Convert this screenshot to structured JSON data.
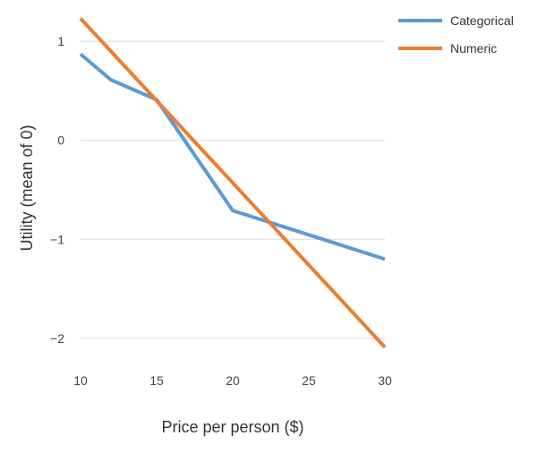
{
  "chart_data": {
    "type": "line",
    "title": "",
    "xlabel": "Price per person ($)",
    "ylabel": "Utility (mean of 0)",
    "xlim": [
      10,
      30
    ],
    "ylim": [
      -2.2,
      1.3
    ],
    "xticks": [
      10,
      15,
      20,
      25,
      30
    ],
    "yticks": [
      1,
      0,
      -1,
      -2
    ],
    "ytick_labels": [
      "1",
      "0",
      "−1",
      "−2"
    ],
    "grid": "horizontal",
    "legend_position": "top-right",
    "series": [
      {
        "name": "Categorical",
        "color": "#5b9bd5",
        "x": [
          10,
          12,
          15,
          20,
          30
        ],
        "y": [
          0.87,
          0.61,
          0.41,
          -0.71,
          -1.2
        ]
      },
      {
        "name": "Numeric",
        "color": "#ed7d31",
        "x": [
          10,
          30
        ],
        "y": [
          1.23,
          -2.09
        ]
      }
    ]
  }
}
